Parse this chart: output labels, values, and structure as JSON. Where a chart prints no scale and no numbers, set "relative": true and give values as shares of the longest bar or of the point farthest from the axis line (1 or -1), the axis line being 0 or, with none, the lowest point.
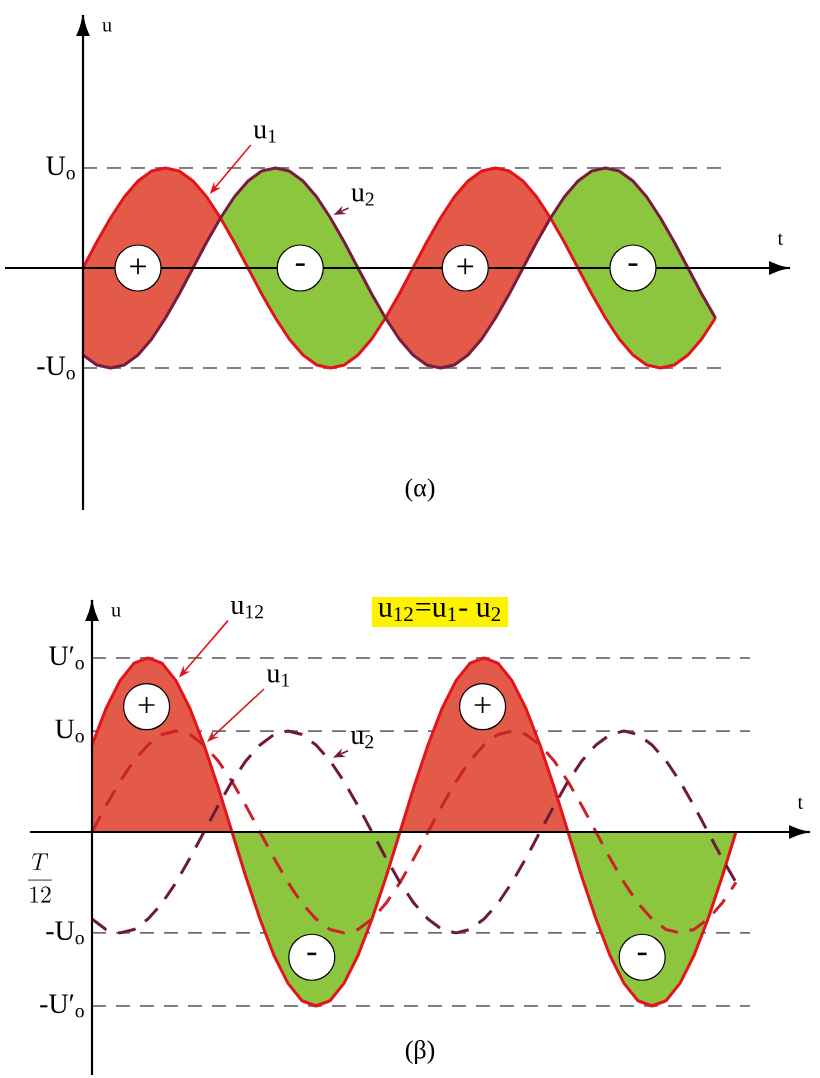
{
  "chart_data": [
    {
      "type": "line",
      "relative": true,
      "xlabel": "t",
      "ylabel": "u",
      "categories": [
        null,
        null,
        null,
        null,
        null,
        null,
        null,
        null,
        null,
        null,
        null,
        null,
        null,
        null,
        null,
        null,
        null,
        null,
        null,
        null,
        null,
        null,
        null,
        null,
        null,
        null,
        null,
        null,
        null,
        null,
        null,
        null,
        null,
        null,
        null,
        null,
        null,
        null,
        null,
        null,
        null,
        null,
        null,
        null,
        null,
        null,
        null
      ],
      "ref_lines": [
        {
          "axis": "y",
          "value": 1,
          "label": "U$_{o}$",
          "line_style": "dashed"
        },
        {
          "axis": "y",
          "value": -1,
          "label": "-U$_{o}$",
          "line_style": "dashed"
        }
      ],
      "colors": [
        "#e35a48",
        "#8cc63f"
      ],
      "series": [
        {
          "name": "u$_{1}$",
          "color": "#e3141c",
          "values": [
            0,
            0.26,
            0.5,
            0.71,
            0.87,
            0.97,
            1,
            0.97,
            0.87,
            0.71,
            0.5,
            0.26,
            0,
            -0.26,
            -0.5,
            -0.71,
            -0.87,
            -0.97,
            -1,
            -0.97,
            -0.87,
            -0.71,
            -0.5,
            -0.26,
            0,
            0.26,
            0.5,
            0.71,
            0.87,
            0.97,
            1,
            0.97,
            0.87,
            0.71,
            0.5,
            0.26,
            0,
            -0.26,
            -0.5,
            -0.71,
            -0.87,
            -0.97,
            -1,
            -0.97,
            -0.87,
            -0.71,
            -0.5
          ]
        },
        {
          "name": "u$_{2}$",
          "color": "#7a1c3e",
          "values": [
            -0.87,
            -0.97,
            -1,
            -0.97,
            -0.87,
            -0.71,
            -0.5,
            -0.26,
            0,
            0.26,
            0.5,
            0.71,
            0.87,
            0.97,
            1,
            0.97,
            0.87,
            0.71,
            0.5,
            0.26,
            0,
            -0.26,
            -0.5,
            -0.71,
            -0.87,
            -0.97,
            -1,
            -0.97,
            -0.87,
            -0.71,
            -0.5,
            -0.26,
            0,
            0.26,
            0.5,
            0.71,
            0.87,
            0.97,
            1,
            0.97,
            0.87,
            0.71,
            0.5,
            0.26,
            0,
            -0.26,
            -0.5
          ]
        }
      ],
      "annotations": [
        "+",
        "-",
        "+",
        "-",
        "(α)"
      ]
    },
    {
      "type": "line",
      "relative": true,
      "title": "u$_{12}$=u$_{1}$- u$_{2}$",
      "xlabel": "t",
      "ylabel": "u",
      "categories": [
        null,
        null,
        null,
        null,
        null,
        null,
        null,
        null,
        null,
        null,
        null,
        null,
        null,
        null,
        null,
        null,
        null,
        null,
        null,
        null,
        null,
        null,
        null,
        null,
        null,
        null,
        null,
        null,
        null,
        null,
        null,
        null,
        null,
        null,
        null,
        null,
        null,
        null,
        null,
        null,
        null,
        null,
        null,
        null,
        null,
        null,
        null
      ],
      "ref_lines": [
        {
          "axis": "y",
          "value": 1,
          "label": "U′$_{o}$",
          "line_style": "dashed"
        },
        {
          "axis": "y",
          "value": 0.58,
          "label": "U$_{o}$",
          "line_style": "dashed"
        },
        {
          "axis": "y",
          "value": -0.58,
          "label": "-U$_{o}$",
          "line_style": "dashed"
        },
        {
          "axis": "y",
          "value": -1,
          "label": "-U′$_{o}$",
          "line_style": "dashed"
        }
      ],
      "colors": [
        "#e35a48",
        "#8cc63f"
      ],
      "series": [
        {
          "name": "u$_{12}$",
          "type": "area",
          "color": "#e3141c",
          "values": [
            0.5,
            0.71,
            0.87,
            0.97,
            1,
            0.97,
            0.87,
            0.71,
            0.5,
            0.26,
            0,
            -0.26,
            -0.5,
            -0.71,
            -0.87,
            -0.97,
            -1,
            -0.97,
            -0.87,
            -0.71,
            -0.5,
            -0.26,
            0,
            0.26,
            0.5,
            0.71,
            0.87,
            0.97,
            1,
            0.97,
            0.87,
            0.71,
            0.5,
            0.26,
            0,
            -0.26,
            -0.5,
            -0.71,
            -0.87,
            -0.97,
            -1,
            -0.97,
            -0.87,
            -0.71,
            -0.5,
            -0.26,
            0
          ]
        },
        {
          "name": "u$_{1}$",
          "line_style": "dashed",
          "color": "#cc2229",
          "values": [
            0,
            0.15,
            0.29,
            0.41,
            0.5,
            0.56,
            0.58,
            0.56,
            0.5,
            0.41,
            0.29,
            0.15,
            0,
            -0.15,
            -0.29,
            -0.41,
            -0.5,
            -0.56,
            -0.58,
            -0.56,
            -0.5,
            -0.41,
            -0.29,
            -0.15,
            0,
            0.15,
            0.29,
            0.41,
            0.5,
            0.56,
            0.58,
            0.56,
            0.5,
            0.41,
            0.29,
            0.15,
            0,
            -0.15,
            -0.29,
            -0.41,
            -0.5,
            -0.56,
            -0.58,
            -0.56,
            -0.5,
            -0.41,
            -0.29
          ]
        },
        {
          "name": "u$_{2}$",
          "line_style": "dashed",
          "color": "#6e1a3a",
          "values": [
            -0.5,
            -0.56,
            -0.58,
            -0.56,
            -0.5,
            -0.41,
            -0.29,
            -0.15,
            0,
            0.15,
            0.29,
            0.41,
            0.5,
            0.56,
            0.58,
            0.56,
            0.5,
            0.41,
            0.29,
            0.15,
            0,
            -0.15,
            -0.29,
            -0.41,
            -0.5,
            -0.56,
            -0.58,
            -0.56,
            -0.5,
            -0.41,
            -0.29,
            -0.15,
            0,
            0.15,
            0.29,
            0.41,
            0.5,
            0.56,
            0.58,
            0.56,
            0.5,
            0.41,
            0.29,
            0.15,
            0,
            -0.15,
            -0.29
          ]
        }
      ],
      "annotations": [
        "+",
        "-",
        "+",
        "-",
        "(β)",
        "\\frac{T}{12}"
      ]
    }
  ]
}
